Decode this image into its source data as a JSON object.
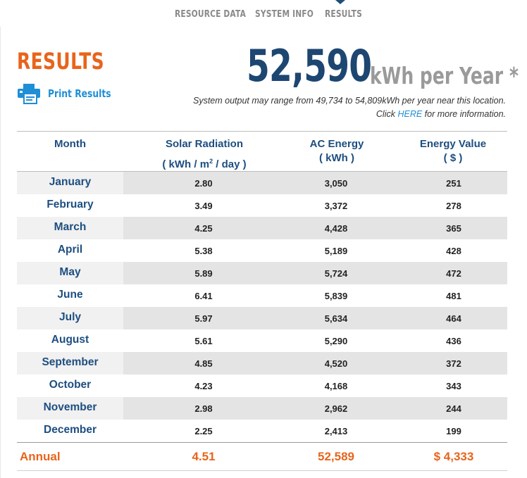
{
  "tabs": [
    {
      "label": "RESOURCE DATA"
    },
    {
      "label": "SYSTEM INFO"
    },
    {
      "label": "RESULTS"
    }
  ],
  "results": {
    "title": "RESULTS",
    "print_label": "Print Results",
    "annual_output": "52,590",
    "unit": "kWh per Year *",
    "range_text": "System output may range from 49,734 to 54,809kWh per year near this location.",
    "click_prefix": "Click ",
    "click_link": "HERE",
    "click_suffix": " for more information."
  },
  "table": {
    "headers": {
      "month": "Month",
      "solar_line1": "Solar Radiation",
      "solar_line2_pre": "( kWh / m",
      "solar_sup": "2",
      "solar_line2_post": " / day )",
      "ac_line1": "AC Energy",
      "ac_line2": "( kWh )",
      "value_line1": "Energy Value",
      "value_line2": "( $ )"
    },
    "rows": [
      {
        "month": "January",
        "solar": "2.80",
        "ac": "3,050",
        "value": "251"
      },
      {
        "month": "February",
        "solar": "3.49",
        "ac": "3,372",
        "value": "278"
      },
      {
        "month": "March",
        "solar": "4.25",
        "ac": "4,428",
        "value": "365"
      },
      {
        "month": "April",
        "solar": "5.38",
        "ac": "5,189",
        "value": "428"
      },
      {
        "month": "May",
        "solar": "5.89",
        "ac": "5,724",
        "value": "472"
      },
      {
        "month": "June",
        "solar": "6.41",
        "ac": "5,839",
        "value": "481"
      },
      {
        "month": "July",
        "solar": "5.97",
        "ac": "5,634",
        "value": "464"
      },
      {
        "month": "August",
        "solar": "5.61",
        "ac": "5,290",
        "value": "436"
      },
      {
        "month": "September",
        "solar": "4.85",
        "ac": "4,520",
        "value": "372"
      },
      {
        "month": "October",
        "solar": "4.23",
        "ac": "4,168",
        "value": "343"
      },
      {
        "month": "November",
        "solar": "2.98",
        "ac": "2,962",
        "value": "244"
      },
      {
        "month": "December",
        "solar": "2.25",
        "ac": "2,413",
        "value": "199"
      }
    ],
    "annual": {
      "label": "Annual",
      "solar": "4.51",
      "ac": "52,589",
      "value": "$ 4,333"
    }
  },
  "colors": {
    "accent_orange": "#e8641c",
    "navy": "#1d4671",
    "link_blue": "#1e8fd6"
  },
  "icons": {
    "print": "printer-icon"
  }
}
